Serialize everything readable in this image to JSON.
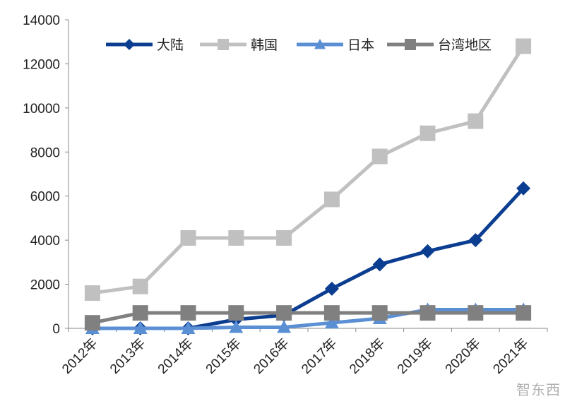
{
  "chart_data": {
    "type": "line",
    "title": "",
    "xlabel": "",
    "ylabel": "",
    "categories": [
      "2012年",
      "2013年",
      "2014年",
      "2015年",
      "2016年",
      "2017年",
      "2018年",
      "2019年",
      "2020年",
      "2021年"
    ],
    "ylim": [
      0,
      14000
    ],
    "yticks": [
      0,
      2000,
      4000,
      6000,
      8000,
      10000,
      12000,
      14000
    ],
    "legend_position": "top",
    "grid": false,
    "series": [
      {
        "name": "大陆",
        "marker": "diamond",
        "color": "#0b3d91",
        "values": [
          0,
          0,
          0,
          400,
          600,
          1800,
          2900,
          3500,
          4000,
          6350
        ]
      },
      {
        "name": "韩国",
        "marker": "square",
        "color": "#c0c0c0",
        "values": [
          1600,
          1900,
          4100,
          4100,
          4100,
          5850,
          7800,
          8850,
          9400,
          12800
        ]
      },
      {
        "name": "日本",
        "marker": "triangle",
        "color": "#5b8fd4",
        "values": [
          0,
          0,
          0,
          50,
          50,
          250,
          450,
          850,
          850,
          850
        ]
      },
      {
        "name": "台湾地区",
        "marker": "square",
        "color": "#808080",
        "values": [
          250,
          700,
          700,
          700,
          700,
          700,
          700,
          700,
          700,
          700
        ]
      }
    ]
  },
  "watermark": "智东西"
}
